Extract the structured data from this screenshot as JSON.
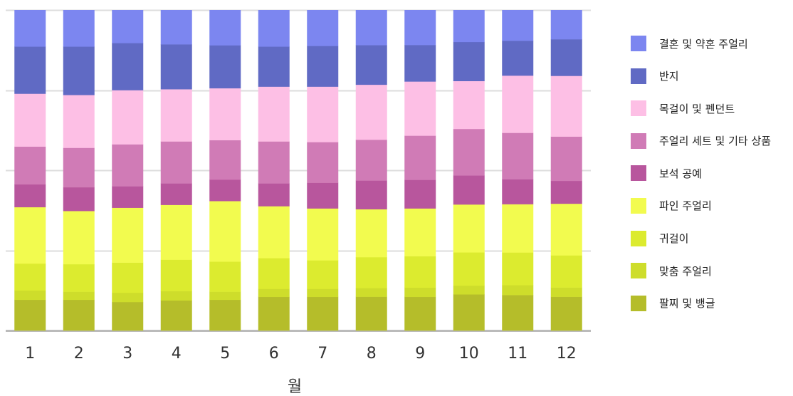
{
  "chart_data": {
    "type": "bar",
    "stacked": true,
    "normalized": true,
    "xlabel": "월",
    "ylabel": "",
    "ylim": [
      0,
      100
    ],
    "grid": true,
    "legend_position": "right",
    "categories": [
      "1",
      "2",
      "3",
      "4",
      "5",
      "6",
      "7",
      "8",
      "9",
      "10",
      "11",
      "12"
    ],
    "series": [
      {
        "name": "팔찌 및 뱅글",
        "color": "#b5bd2a",
        "values": [
          9.6,
          9.6,
          8.9,
          9.4,
          9.6,
          10.5,
          10.5,
          10.5,
          10.5,
          11.1,
          11.1,
          10.5
        ]
      },
      {
        "name": "맞춤 주얼리",
        "color": "#cedd2b",
        "values": [
          2.9,
          2.5,
          2.9,
          2.9,
          2.5,
          2.5,
          2.5,
          2.7,
          2.9,
          2.7,
          3.1,
          2.9
        ]
      },
      {
        "name": "귀걸이",
        "color": "#dceb2f",
        "values": [
          8.4,
          8.6,
          9.4,
          9.8,
          9.4,
          9.6,
          8.9,
          9.6,
          9.8,
          10.2,
          10.2,
          10.0
        ]
      },
      {
        "name": "파인 주얼리",
        "color": "#f2fb4f",
        "values": [
          17.6,
          16.6,
          17.1,
          17.1,
          18.9,
          16.2,
          16.2,
          14.9,
          14.9,
          14.7,
          15.1,
          16.1
        ]
      },
      {
        "name": "보석 공예",
        "color": "#b8569d",
        "values": [
          7.1,
          7.4,
          6.7,
          6.7,
          6.7,
          7.1,
          8.0,
          8.9,
          8.9,
          8.9,
          7.8,
          7.1
        ]
      },
      {
        "name": "주얼리 세트 및 기타 상품",
        "color": "#d07bb6",
        "values": [
          11.8,
          12.3,
          13.1,
          13.1,
          12.3,
          13.1,
          12.7,
          12.7,
          13.8,
          14.3,
          14.5,
          13.8
        ]
      },
      {
        "name": "목걸이 및 펜던트",
        "color": "#fdbfe5",
        "values": [
          16.5,
          16.5,
          16.9,
          16.3,
          16.2,
          17.1,
          17.3,
          17.1,
          16.9,
          14.7,
          17.9,
          18.9
        ]
      },
      {
        "name": "반지",
        "color": "#606ac4",
        "values": [
          14.7,
          15.1,
          14.7,
          14.0,
          13.4,
          12.5,
          12.7,
          12.3,
          11.4,
          12.0,
          10.9,
          11.4
        ]
      },
      {
        "name": "결혼 및 약혼 주얼리",
        "color": "#7c86f0",
        "values": [
          11.4,
          11.4,
          10.3,
          10.7,
          11.0,
          11.4,
          11.2,
          10.9,
          10.9,
          9.8,
          9.6,
          9.1
        ]
      }
    ]
  }
}
